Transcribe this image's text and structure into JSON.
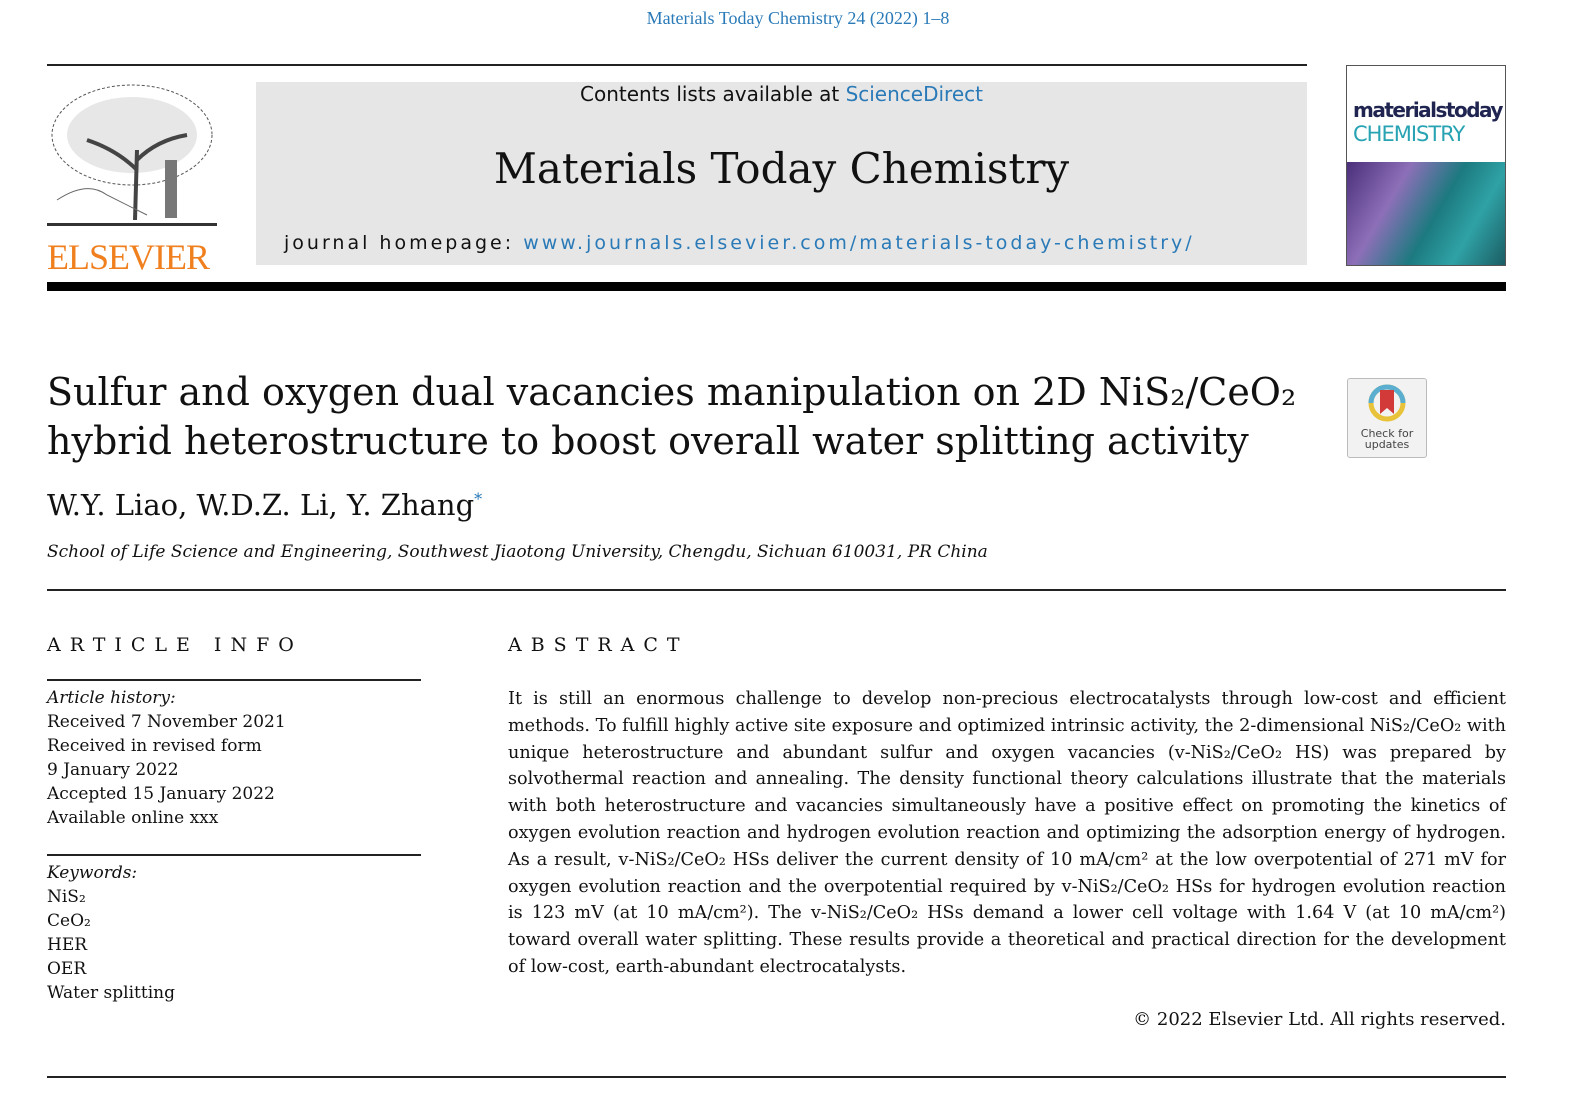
{
  "header": {
    "citation": "Materials Today Chemistry 24 (2022) 1–8",
    "contents_prefix": "Contents lists available at ",
    "contents_link": "ScienceDirect",
    "journal_title": "Materials Today Chemistry",
    "homepage_prefix": "journal homepage: ",
    "homepage_link": "www.journals.elsevier.com/materials-today-chemistry/",
    "publisher_logo_text": "ELSEVIER",
    "publisher_color": "#f07f1e",
    "cover_line1": "materialstoday",
    "cover_line2": "CHEMISTRY",
    "check_updates": "Check for updates"
  },
  "article": {
    "title": "Sulfur and oxygen dual vacancies manipulation on 2D NiS₂/CeO₂ hybrid heterostructure to boost overall water splitting activity",
    "authors": "W.Y. Liao, W.D.Z. Li, Y. Zhang",
    "corresponding_mark": "*",
    "affiliation": "School of Life Science and Engineering, Southwest Jiaotong University, Chengdu, Sichuan 610031, PR China"
  },
  "article_info": {
    "heading": "ARTICLE INFO",
    "history_label": "Article history:",
    "history": [
      "Received 7 November 2021",
      "Received in revised form",
      "9 January 2022",
      "Accepted 15 January 2022",
      "Available online xxx"
    ],
    "keywords_label": "Keywords:",
    "keywords": [
      "NiS₂",
      "CeO₂",
      "HER",
      "OER",
      "Water splitting"
    ]
  },
  "abstract": {
    "heading": "ABSTRACT",
    "text": "It is still an enormous challenge to develop non-precious electrocatalysts through low-cost and efficient methods. To fulfill highly active site exposure and optimized intrinsic activity, the 2-dimensional NiS₂/CeO₂ with unique heterostructure and abundant sulfur and oxygen vacancies (v-NiS₂/CeO₂ HS) was prepared by solvothermal reaction and annealing. The density functional theory calculations illustrate that the materials with both heterostructure and vacancies simultaneously have a positive effect on promoting the kinetics of oxygen evolution reaction and hydrogen evolution reaction and optimizing the adsorption energy of hydrogen. As a result, v-NiS₂/CeO₂ HSs deliver the current density of 10 mA/cm² at the low overpotential of 271 mV for oxygen evolution reaction and the overpotential required by v-NiS₂/CeO₂ HSs for hydrogen evolution reaction is 123 mV (at 10 mA/cm²). The v-NiS₂/CeO₂ HSs demand a lower cell voltage with 1.64 V (at 10 mA/cm²) toward overall water splitting. These results provide a theoretical and practical direction for the development of low-cost, earth-abundant electrocatalysts.",
    "copyright": "© 2022 Elsevier Ltd. All rights reserved."
  }
}
